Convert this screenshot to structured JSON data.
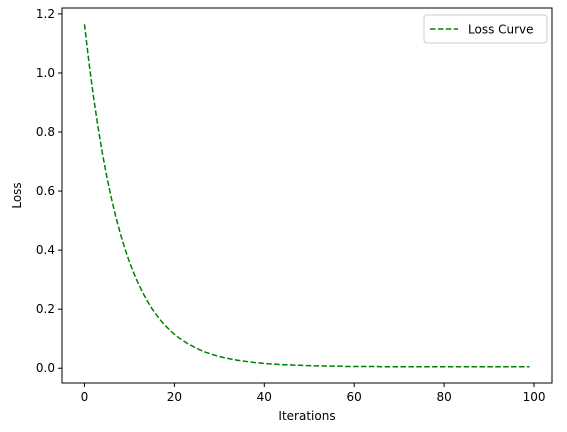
{
  "chart_data": {
    "type": "line",
    "title": "",
    "xlabel": "Iterations",
    "ylabel": "Loss",
    "xlim": [
      -5,
      104
    ],
    "ylim": [
      -0.05,
      1.22
    ],
    "xticks": [
      0,
      20,
      40,
      60,
      80,
      100
    ],
    "yticks": [
      0.0,
      0.2,
      0.4,
      0.6,
      0.8,
      1.0,
      1.2
    ],
    "grid": false,
    "legend_position": "upper right",
    "series": [
      {
        "name": "Loss Curve",
        "color": "#008000",
        "line_style": "dashed",
        "x": [
          0,
          1,
          2,
          3,
          4,
          5,
          6,
          7,
          8,
          9,
          10,
          11,
          12,
          13,
          14,
          15,
          16,
          17,
          18,
          19,
          20,
          21,
          22,
          23,
          24,
          25,
          26,
          27,
          28,
          29,
          30,
          31,
          32,
          33,
          34,
          35,
          36,
          37,
          38,
          39,
          40,
          41,
          42,
          43,
          44,
          45,
          46,
          47,
          48,
          49,
          50,
          51,
          52,
          53,
          54,
          55,
          56,
          57,
          58,
          59,
          60,
          61,
          62,
          63,
          64,
          65,
          66,
          67,
          68,
          69,
          70,
          71,
          72,
          73,
          74,
          75,
          76,
          77,
          78,
          79,
          80,
          81,
          82,
          83,
          84,
          85,
          86,
          87,
          88,
          89,
          90,
          91,
          92,
          93,
          94,
          95,
          96,
          97,
          98,
          99
        ],
        "y": [
          1.165,
          1.035,
          0.92,
          0.818,
          0.727,
          0.646,
          0.575,
          0.511,
          0.455,
          0.405,
          0.36,
          0.321,
          0.286,
          0.255,
          0.227,
          0.202,
          0.181,
          0.161,
          0.144,
          0.129,
          0.115,
          0.103,
          0.093,
          0.083,
          0.075,
          0.067,
          0.06,
          0.054,
          0.049,
          0.044,
          0.04,
          0.036,
          0.033,
          0.03,
          0.027,
          0.025,
          0.023,
          0.021,
          0.019,
          0.018,
          0.016,
          0.015,
          0.014,
          0.013,
          0.012,
          0.012,
          0.011,
          0.01,
          0.01,
          0.009,
          0.009,
          0.008,
          0.008,
          0.008,
          0.007,
          0.007,
          0.007,
          0.007,
          0.006,
          0.006,
          0.006,
          0.006,
          0.006,
          0.006,
          0.006,
          0.006,
          0.005,
          0.005,
          0.005,
          0.005,
          0.005,
          0.005,
          0.005,
          0.005,
          0.005,
          0.005,
          0.005,
          0.005,
          0.005,
          0.005,
          0.005,
          0.005,
          0.005,
          0.005,
          0.005,
          0.005,
          0.005,
          0.005,
          0.005,
          0.005,
          0.005,
          0.005,
          0.005,
          0.005,
          0.005,
          0.005,
          0.005,
          0.005,
          0.005,
          0.005
        ]
      }
    ]
  }
}
